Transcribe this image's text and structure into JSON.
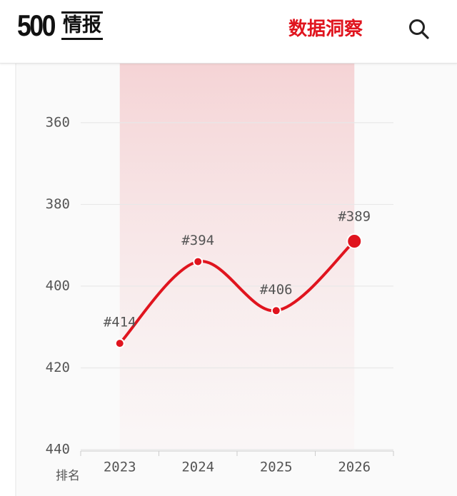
{
  "header": {
    "logo_number": "500",
    "logo_text": "情报",
    "nav_link": "数据洞察"
  },
  "chart_data": {
    "type": "line",
    "y_axis_label": "排名",
    "categories": [
      "2023",
      "2024",
      "2025",
      "2026"
    ],
    "values": [
      414,
      394,
      406,
      389
    ],
    "value_labels": [
      "#414",
      "#394",
      "#406",
      "#389"
    ],
    "color": "#e0141e",
    "ylim": [
      440,
      345
    ],
    "yticks": [
      360,
      380,
      400,
      420,
      440
    ],
    "grid": true
  }
}
